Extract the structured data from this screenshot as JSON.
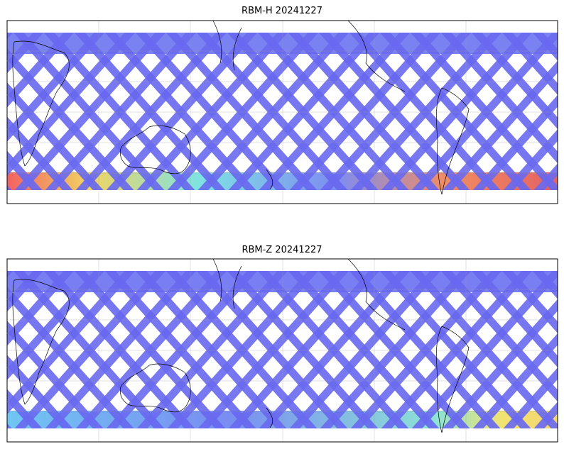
{
  "panels": [
    {
      "title": "RBM-H 20241227"
    },
    {
      "title": "RBM-Z 20241227"
    }
  ]
}
